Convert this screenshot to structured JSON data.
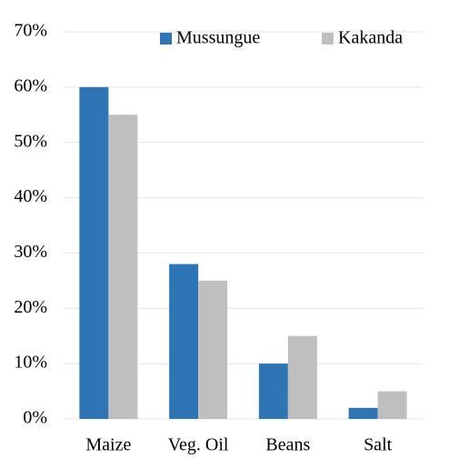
{
  "chart_data": {
    "type": "bar",
    "categories": [
      "Maize",
      "Veg. Oil",
      "Beans",
      "Salt"
    ],
    "series": [
      {
        "name": "Mussungue",
        "color": "#2e75b6",
        "values": [
          60,
          28,
          10,
          2
        ]
      },
      {
        "name": "Kakanda",
        "color": "#bfbfbf",
        "values": [
          55,
          25,
          15,
          5
        ]
      }
    ],
    "ylim": [
      0,
      70
    ],
    "yticks": [
      {
        "value": 0,
        "label": "0%"
      },
      {
        "value": 10,
        "label": "10%"
      },
      {
        "value": 20,
        "label": "20%"
      },
      {
        "value": 30,
        "label": "30%"
      },
      {
        "value": 40,
        "label": "40%"
      },
      {
        "value": 50,
        "label": "50%"
      },
      {
        "value": 60,
        "label": "60%"
      },
      {
        "value": 70,
        "label": "70%"
      }
    ],
    "grid": true,
    "legend": "top-right"
  }
}
